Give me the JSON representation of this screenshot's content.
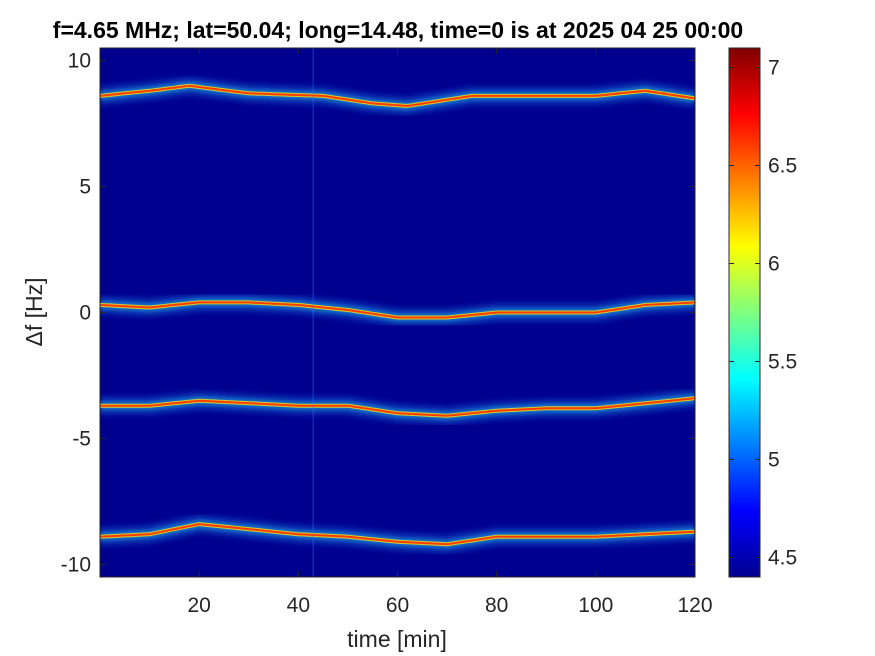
{
  "chart_data": {
    "type": "heatmap",
    "title": "f=4.65 MHz;  lat=50.04; long=14.48, time=0 is at 2025 04 25 00:00",
    "xlabel": "time [min]",
    "ylabel": "Δf [Hz]",
    "xlim": [
      0,
      120
    ],
    "ylim": [
      -10.5,
      10.5
    ],
    "x_ticks": [
      20,
      40,
      60,
      80,
      100,
      120
    ],
    "x_tick_labels": [
      "20",
      "40",
      "60",
      "80",
      "100",
      "120"
    ],
    "y_ticks": [
      10,
      5,
      0,
      -5,
      -10
    ],
    "y_tick_labels": [
      "10",
      "5",
      "0",
      "-5",
      "-10"
    ],
    "colormap": "jet",
    "background_color": "#00008f",
    "colorbar": {
      "clim": [
        4.4,
        7.1
      ],
      "ticks": [
        7,
        6.5,
        6,
        5.5,
        5,
        4.5
      ],
      "tick_labels": [
        "7",
        "6.5",
        "6",
        "5.5",
        "5",
        "4.5"
      ]
    },
    "traces": [
      {
        "name": "",
        "x": [
          0,
          10,
          18,
          30,
          45,
          55,
          62,
          75,
          85,
          100,
          110,
          120
        ],
        "y": [
          8.6,
          8.8,
          9.0,
          8.7,
          8.6,
          8.3,
          8.2,
          8.6,
          8.6,
          8.6,
          8.8,
          8.5
        ]
      },
      {
        "name": "",
        "x": [
          0,
          10,
          20,
          30,
          40,
          50,
          60,
          70,
          80,
          90,
          100,
          110,
          120
        ],
        "y": [
          0.3,
          0.2,
          0.4,
          0.4,
          0.3,
          0.1,
          -0.2,
          -0.2,
          0.0,
          0.0,
          0.0,
          0.3,
          0.4
        ]
      },
      {
        "name": "",
        "x": [
          0,
          10,
          20,
          30,
          40,
          50,
          60,
          70,
          80,
          90,
          100,
          110,
          120
        ],
        "y": [
          -3.7,
          -3.7,
          -3.5,
          -3.6,
          -3.7,
          -3.7,
          -4.0,
          -4.1,
          -3.9,
          -3.8,
          -3.8,
          -3.6,
          -3.4
        ]
      },
      {
        "name": "",
        "x": [
          0,
          10,
          20,
          30,
          40,
          50,
          60,
          70,
          80,
          90,
          100,
          110,
          120
        ],
        "y": [
          -8.9,
          -8.8,
          -8.4,
          -8.6,
          -8.8,
          -8.9,
          -9.1,
          -9.2,
          -8.9,
          -8.9,
          -8.9,
          -8.8,
          -8.7
        ]
      }
    ],
    "grid": false,
    "legend": "none"
  }
}
